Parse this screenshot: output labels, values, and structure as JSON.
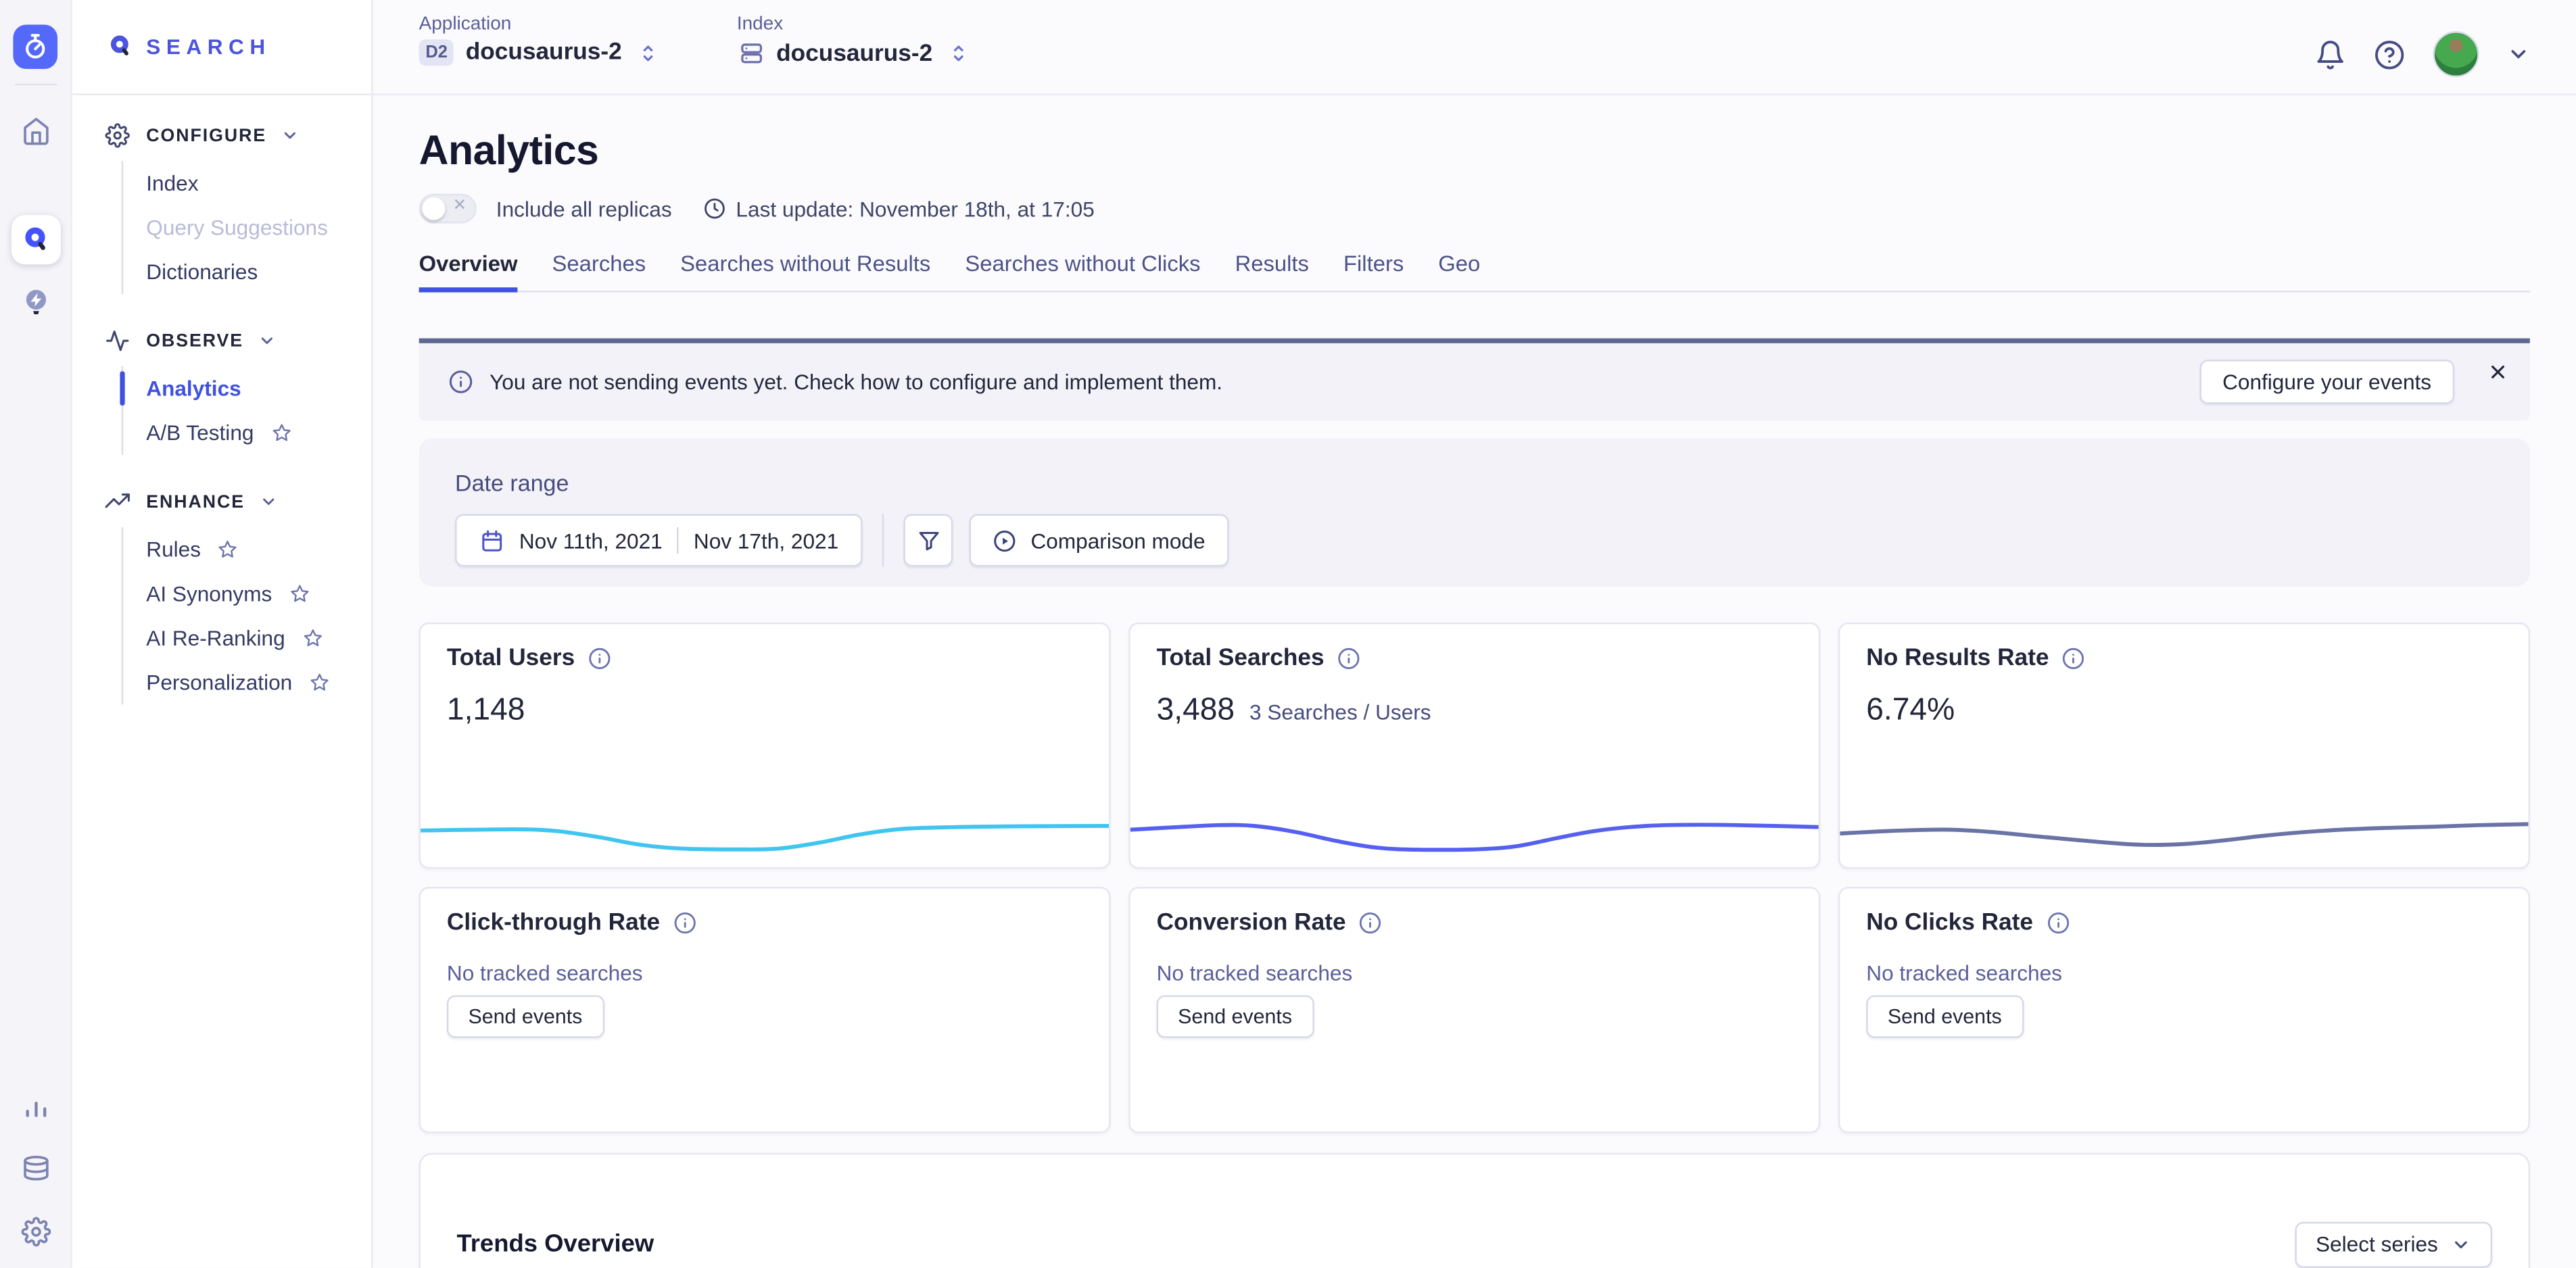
{
  "colors": {
    "accent": "#3e51e1",
    "logo": "#4a54dd",
    "banner_border": "#5d6590",
    "spark_users": "#3fc5f0",
    "spark_searches": "#5560f0",
    "spark_noresults": "#6a73a6"
  },
  "rail_icons": [
    "stopwatch",
    "home",
    "search",
    "recommend",
    "bar-chart",
    "database",
    "gear"
  ],
  "sidebar": {
    "logo": "SEARCH",
    "sections": [
      {
        "label": "CONFIGURE",
        "icon": "gear",
        "items": [
          {
            "label": "Index"
          },
          {
            "label": "Query Suggestions",
            "disabled": true
          },
          {
            "label": "Dictionaries"
          }
        ]
      },
      {
        "label": "OBSERVE",
        "icon": "pulse",
        "items": [
          {
            "label": "Analytics",
            "active": true
          },
          {
            "label": "A/B Testing",
            "starred": true
          }
        ]
      },
      {
        "label": "ENHANCE",
        "icon": "trend",
        "items": [
          {
            "label": "Rules",
            "starred": true
          },
          {
            "label": "AI Synonyms",
            "starred": true
          },
          {
            "label": "AI Re-Ranking",
            "starred": true
          },
          {
            "label": "Personalization",
            "starred": true
          }
        ]
      }
    ]
  },
  "topbar": {
    "application": {
      "label": "Application",
      "badge": "D2",
      "value": "docusaurus-2"
    },
    "index": {
      "label": "Index",
      "value": "docusaurus-2"
    },
    "right_icons": [
      "bell",
      "help",
      "avatar",
      "chevron-down"
    ]
  },
  "page": {
    "title": "Analytics",
    "toggle_label": "Include all replicas",
    "last_update": "Last update: November 18th, at 17:05"
  },
  "tabs": [
    {
      "label": "Overview",
      "active": true
    },
    {
      "label": "Searches"
    },
    {
      "label": "Searches without Results"
    },
    {
      "label": "Searches without Clicks"
    },
    {
      "label": "Results"
    },
    {
      "label": "Filters"
    },
    {
      "label": "Geo"
    }
  ],
  "banner": {
    "message": "You are not sending events yet. Check how to configure and implement them.",
    "button": "Configure your events"
  },
  "date_range": {
    "label": "Date range",
    "start": "Nov 11th, 2021",
    "end": "Nov 17th, 2021",
    "comparison_button": "Comparison mode"
  },
  "metrics": {
    "row1": [
      {
        "title": "Total Users",
        "value": "1,148",
        "sub": "",
        "spark": 0
      },
      {
        "title": "Total Searches",
        "value": "3,488",
        "sub": "3 Searches / Users",
        "spark": 1
      },
      {
        "title": "No Results Rate",
        "value": "6.74%",
        "sub": "",
        "spark": 2
      }
    ],
    "row2": [
      {
        "title": "Click-through Rate",
        "note": "No tracked searches",
        "button": "Send events"
      },
      {
        "title": "Conversion Rate",
        "note": "No tracked searches",
        "button": "Send events"
      },
      {
        "title": "No Clicks Rate",
        "note": "No tracked searches",
        "button": "Send events"
      }
    ]
  },
  "trends": {
    "title": "Trends Overview",
    "select_button": "Select series"
  },
  "chart_data": [
    {
      "type": "line",
      "name": "Total Users sparkline",
      "color": "#3fc5f0",
      "x": [
        0,
        8,
        15,
        20,
        26,
        32,
        38,
        46,
        52,
        58,
        64,
        70,
        78,
        88,
        100
      ],
      "y": [
        0.42,
        0.4,
        0.39,
        0.44,
        0.6,
        0.8,
        0.9,
        0.92,
        0.9,
        0.74,
        0.52,
        0.38,
        0.33,
        0.31,
        0.3
      ]
    },
    {
      "type": "line",
      "name": "Total Searches sparkline",
      "color": "#5560f0",
      "x": [
        0,
        7,
        13,
        18,
        24,
        30,
        36,
        42,
        50,
        56,
        62,
        68,
        75,
        83,
        91,
        100
      ],
      "y": [
        0.4,
        0.33,
        0.28,
        0.3,
        0.46,
        0.7,
        0.88,
        0.93,
        0.92,
        0.84,
        0.62,
        0.42,
        0.3,
        0.27,
        0.29,
        0.33
      ]
    },
    {
      "type": "line",
      "name": "No Results Rate sparkline",
      "color": "#6a73a6",
      "x": [
        0,
        9,
        16,
        22,
        30,
        38,
        44,
        50,
        56,
        62,
        70,
        78,
        86,
        93,
        100
      ],
      "y": [
        0.5,
        0.42,
        0.4,
        0.46,
        0.6,
        0.73,
        0.8,
        0.78,
        0.68,
        0.55,
        0.43,
        0.36,
        0.32,
        0.28,
        0.25
      ]
    }
  ]
}
